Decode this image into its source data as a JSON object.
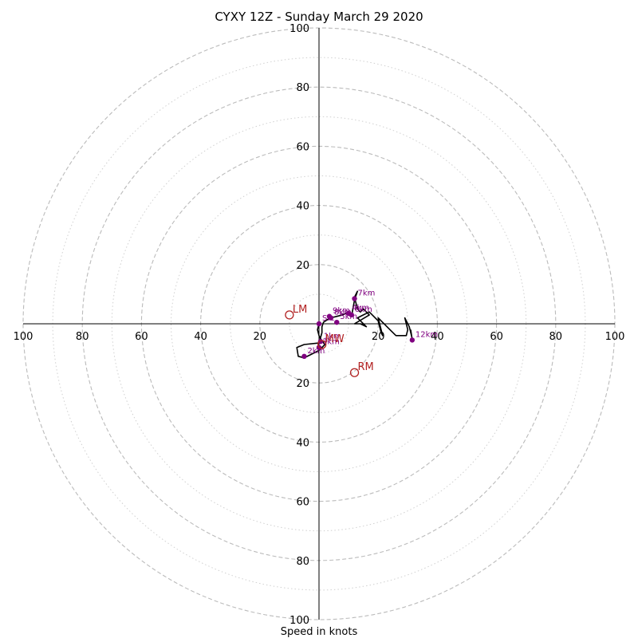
{
  "chart_data": {
    "type": "hodograph",
    "title": "CYXY 12Z - Sunday March 29 2020",
    "xlabel": "Speed in knots",
    "units": "knots",
    "ring_major": [
      20,
      40,
      60,
      80,
      100
    ],
    "ring_minor": [
      10,
      30,
      50,
      70,
      90
    ],
    "axis_range": [
      -100,
      100
    ],
    "tick_labels": {
      "x_left": [
        "100",
        "80",
        "60",
        "40",
        "20"
      ],
      "x_right": [
        "20",
        "40",
        "60",
        "80",
        "100"
      ],
      "y_up": [
        "20",
        "40",
        "60",
        "80",
        "100"
      ],
      "y_down": [
        "20",
        "40",
        "60",
        "80",
        "100"
      ]
    },
    "hodograph_trace": {
      "color": "#000000",
      "points": [
        {
          "u": 0,
          "v": 0
        },
        {
          "u": -0.5,
          "v": -2
        },
        {
          "u": 0,
          "v": -4
        },
        {
          "u": 0.5,
          "v": -5
        },
        {
          "u": 2,
          "v": -7
        },
        {
          "u": 0,
          "v": -9
        },
        {
          "u": -3,
          "v": -10.5
        },
        {
          "u": -5,
          "v": -11.5
        },
        {
          "u": -7,
          "v": -11
        },
        {
          "u": -7.5,
          "v": -8
        },
        {
          "u": -5,
          "v": -7
        },
        {
          "u": 0,
          "v": -6.5
        },
        {
          "u": 1,
          "v": -3
        },
        {
          "u": 1,
          "v": -1
        },
        {
          "u": 1.5,
          "v": 0.5
        },
        {
          "u": 3,
          "v": 1.5
        },
        {
          "u": 4,
          "v": 2
        },
        {
          "u": 6,
          "v": 2.5
        },
        {
          "u": 8,
          "v": 3
        },
        {
          "u": 9,
          "v": 3.5
        },
        {
          "u": 10,
          "v": 3
        },
        {
          "u": 11,
          "v": 2.5
        },
        {
          "u": 12,
          "v": 8
        },
        {
          "u": 13,
          "v": 11
        },
        {
          "u": 12,
          "v": 9
        },
        {
          "u": 13,
          "v": 5
        },
        {
          "u": 14,
          "v": 4
        },
        {
          "u": 15,
          "v": 5
        },
        {
          "u": 16,
          "v": 4
        },
        {
          "u": 17,
          "v": 3
        },
        {
          "u": 12,
          "v": 0
        },
        {
          "u": 14,
          "v": 0
        },
        {
          "u": 16,
          "v": -1
        },
        {
          "u": 13,
          "v": 2
        },
        {
          "u": 15,
          "v": 3
        },
        {
          "u": 17,
          "v": 4
        },
        {
          "u": 20,
          "v": 1
        },
        {
          "u": 21,
          "v": -3
        },
        {
          "u": 21.5,
          "v": -4
        },
        {
          "u": 21,
          "v": -2
        },
        {
          "u": 20,
          "v": 2
        },
        {
          "u": 24,
          "v": -2
        },
        {
          "u": 26,
          "v": -4
        },
        {
          "u": 29.5,
          "v": -4
        },
        {
          "u": 30,
          "v": -2
        },
        {
          "u": 29,
          "v": 2
        },
        {
          "u": 30.5,
          "v": -1
        },
        {
          "u": 31.5,
          "v": -5
        },
        {
          "u": 31.5,
          "v": -5.5
        },
        {
          "u": 31,
          "v": -2
        }
      ]
    },
    "height_markers": [
      {
        "label": "Sfc",
        "u": 0,
        "v": 0
      },
      {
        "label": "1km",
        "u": 0.5,
        "v": -6
      },
      {
        "label": "2km",
        "u": -5,
        "v": -11
      },
      {
        "label": "3km",
        "u": 0,
        "v": -8
      },
      {
        "label": "4km",
        "u": 10,
        "v": 3.5
      },
      {
        "label": "5km",
        "u": 6,
        "v": 0.5
      },
      {
        "label": "6km",
        "u": 11,
        "v": 3
      },
      {
        "label": "7km",
        "u": 12,
        "v": 8.5
      },
      {
        "label": "8km",
        "u": 4,
        "v": 2
      },
      {
        "label": "9km",
        "u": 3.5,
        "v": 2.5
      },
      {
        "label": "12km",
        "u": 31.5,
        "v": -5.5
      }
    ],
    "motion_markers": [
      {
        "label": "LM",
        "u": -10,
        "v": 3
      },
      {
        "label": "RM",
        "u": 12,
        "v": -16.5
      },
      {
        "label": "MW",
        "u": 1,
        "v": -7
      }
    ],
    "colors": {
      "ring_major": "#bbbbbb",
      "ring_minor": "#d0d0d0",
      "trace": "#000000",
      "height_marker": "#800080",
      "height_label": "#800080",
      "motion_marker": "#b22222",
      "motion_label": "#b22222",
      "axis": "#000000"
    }
  }
}
